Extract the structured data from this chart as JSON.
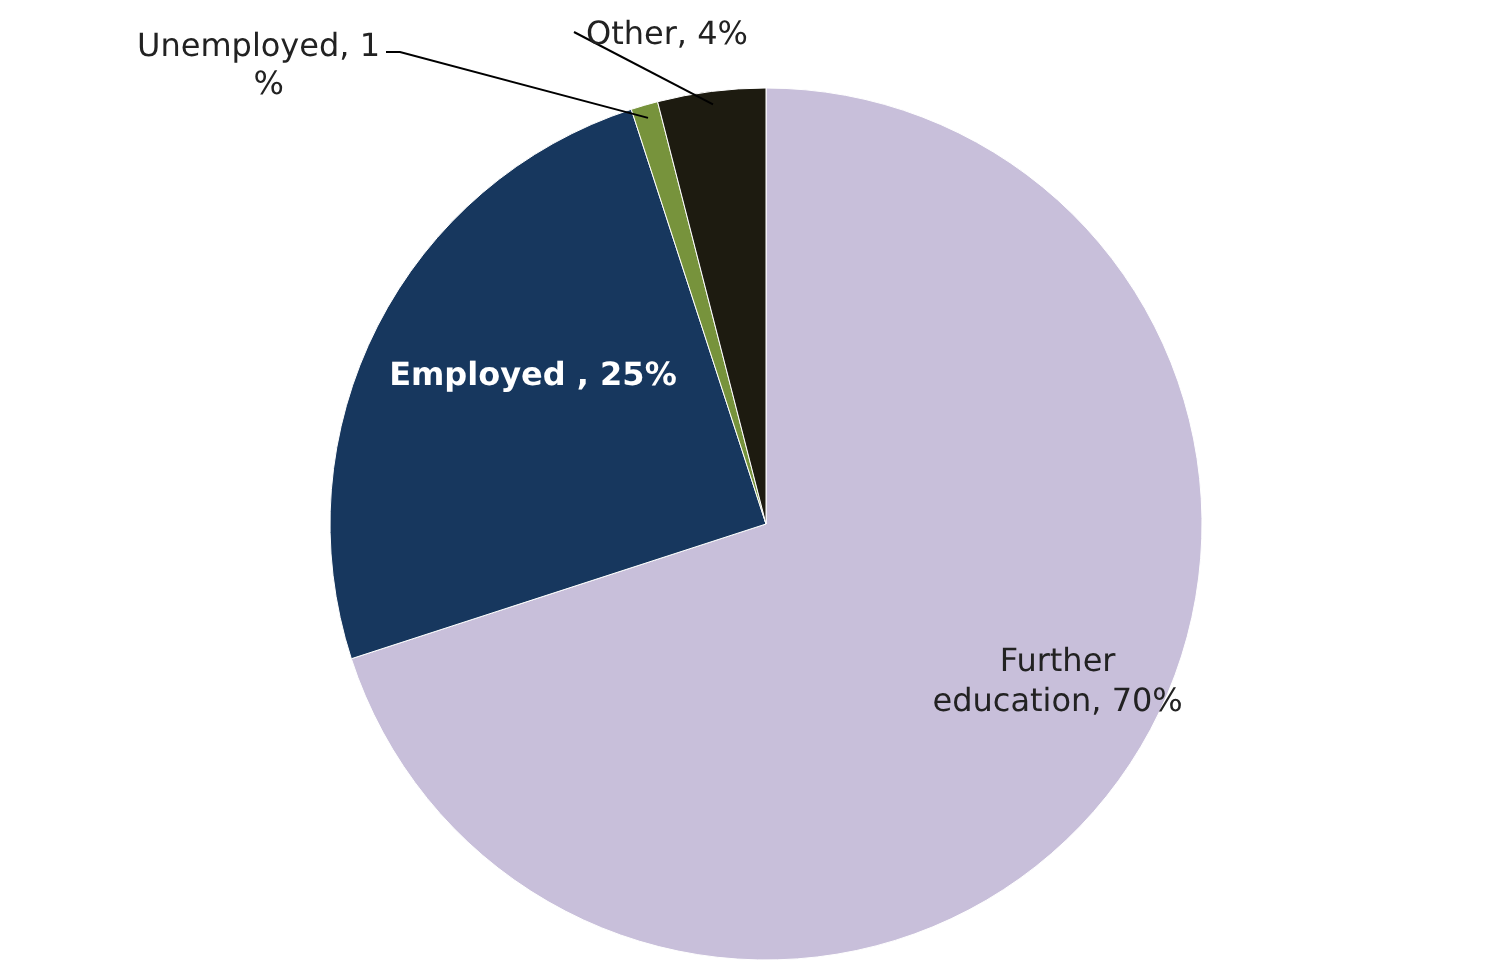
{
  "chart_data": {
    "type": "pie",
    "categories": [
      "Further education",
      "Employed",
      "Unemployed",
      "Other"
    ],
    "values": [
      70,
      25,
      1,
      4
    ],
    "value_labels": [
      "70%",
      "25%",
      "1 %",
      "4%"
    ],
    "colors": [
      "#c8bfda",
      "#17375e",
      "#77933c",
      "#1d1b10"
    ]
  }
}
